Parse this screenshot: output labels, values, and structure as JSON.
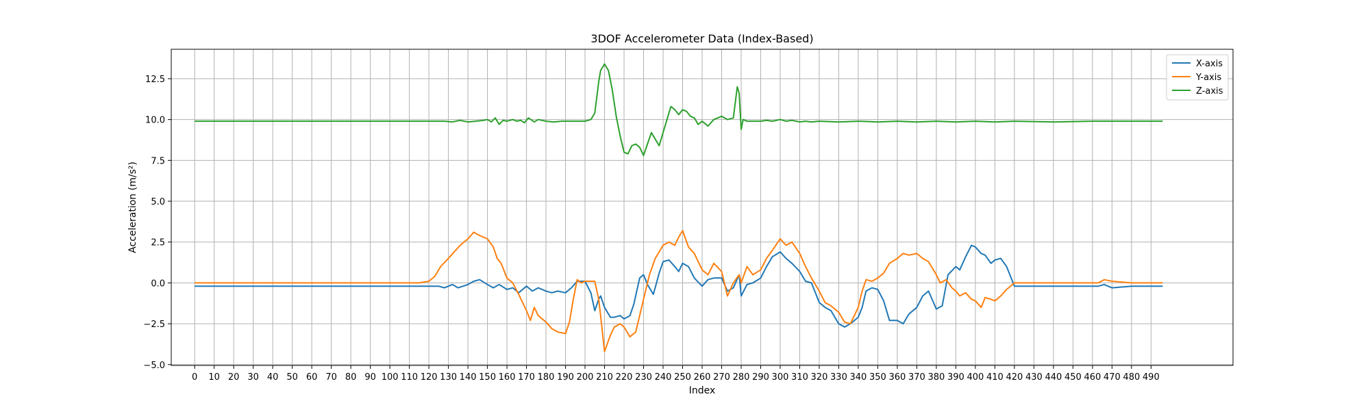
{
  "chart_data": {
    "type": "line",
    "title": "3DOF Accelerometer Data (Index-Based)",
    "xlabel": "Index",
    "ylabel": "Acceleration (m/s²)",
    "xlim": [
      -12,
      532
    ],
    "ylim": [
      -5.05,
      14.3
    ],
    "xticks": [
      0,
      10,
      20,
      30,
      40,
      50,
      60,
      70,
      80,
      90,
      100,
      110,
      120,
      130,
      140,
      150,
      160,
      170,
      180,
      190,
      200,
      210,
      220,
      230,
      240,
      250,
      260,
      270,
      280,
      290,
      300,
      310,
      320,
      330,
      340,
      350,
      360,
      370,
      380,
      390,
      400,
      410,
      420,
      430,
      440,
      450,
      460,
      470,
      480,
      490
    ],
    "yticks": [
      -5.0,
      -2.5,
      0.0,
      2.5,
      5.0,
      7.5,
      10.0,
      12.5
    ],
    "ytick_labels": [
      "−5.0",
      "−2.5",
      "0.0",
      "2.5",
      "5.0",
      "7.5",
      "10.0",
      "12.5"
    ],
    "grid": true,
    "legend_position": "top-right",
    "series": [
      {
        "name": "X-axis",
        "color": "#1f77b4",
        "x": [
          0,
          20,
          40,
          60,
          80,
          100,
          120,
          125,
          128,
          132,
          135,
          140,
          143,
          146,
          150,
          153,
          156,
          160,
          163,
          166,
          170,
          173,
          176,
          180,
          183,
          186,
          190,
          193,
          196,
          200,
          203,
          205,
          207,
          208,
          210,
          213,
          215,
          218,
          220,
          223,
          225,
          228,
          230,
          232,
          235,
          238,
          240,
          243,
          246,
          248,
          250,
          253,
          256,
          260,
          263,
          266,
          270,
          273,
          276,
          279,
          280,
          283,
          286,
          290,
          293,
          296,
          300,
          303,
          306,
          310,
          313,
          316,
          320,
          323,
          326,
          330,
          333,
          336,
          340,
          342,
          344,
          347,
          350,
          353,
          356,
          360,
          363,
          366,
          370,
          373,
          376,
          380,
          383,
          386,
          390,
          392,
          395,
          398,
          400,
          403,
          405,
          408,
          410,
          413,
          416,
          420,
          440,
          460,
          463,
          466,
          470,
          480,
          490,
          496
        ],
        "y": [
          -0.2,
          -0.2,
          -0.2,
          -0.2,
          -0.2,
          -0.2,
          -0.2,
          -0.2,
          -0.3,
          -0.1,
          -0.3,
          -0.1,
          0.1,
          0.2,
          -0.1,
          -0.3,
          -0.1,
          -0.4,
          -0.3,
          -0.6,
          -0.2,
          -0.5,
          -0.3,
          -0.5,
          -0.6,
          -0.5,
          -0.6,
          -0.3,
          0.1,
          0.1,
          -0.6,
          -1.7,
          -1.0,
          -0.8,
          -1.5,
          -2.1,
          -2.1,
          -2.0,
          -2.2,
          -2.0,
          -1.3,
          0.3,
          0.5,
          -0.1,
          -0.7,
          0.6,
          1.3,
          1.4,
          1.0,
          0.7,
          1.2,
          1.0,
          0.3,
          -0.2,
          0.2,
          0.3,
          0.3,
          -0.5,
          -0.3,
          0.5,
          -0.8,
          -0.1,
          0.0,
          0.3,
          1.0,
          1.6,
          1.9,
          1.5,
          1.2,
          0.7,
          0.1,
          0.0,
          -1.2,
          -1.5,
          -1.7,
          -2.5,
          -2.7,
          -2.5,
          -2.1,
          -1.5,
          -0.5,
          -0.3,
          -0.4,
          -1.1,
          -2.3,
          -2.3,
          -2.5,
          -1.9,
          -1.5,
          -0.8,
          -0.5,
          -1.6,
          -1.4,
          0.5,
          1.0,
          0.8,
          1.6,
          2.3,
          2.2,
          1.8,
          1.7,
          1.2,
          1.4,
          1.5,
          1.0,
          -0.2,
          -0.2,
          -0.2,
          -0.2,
          -0.1,
          -0.3,
          -0.2,
          -0.2,
          -0.2
        ]
      },
      {
        "name": "Y-axis",
        "color": "#ff7f0e",
        "x": [
          0,
          20,
          40,
          60,
          80,
          100,
          115,
          120,
          123,
          126,
          130,
          133,
          136,
          140,
          143,
          146,
          150,
          153,
          155,
          157,
          160,
          163,
          166,
          170,
          172,
          174,
          176,
          180,
          183,
          186,
          190,
          192,
          194,
          196,
          198,
          200,
          203,
          205,
          207,
          208,
          210,
          213,
          215,
          218,
          220,
          223,
          226,
          230,
          233,
          236,
          240,
          243,
          246,
          248,
          250,
          253,
          256,
          260,
          263,
          266,
          270,
          273,
          276,
          279,
          280,
          283,
          286,
          290,
          293,
          296,
          300,
          303,
          306,
          310,
          313,
          316,
          320,
          323,
          326,
          330,
          333,
          336,
          340,
          342,
          344,
          347,
          350,
          353,
          356,
          360,
          363,
          366,
          370,
          373,
          376,
          380,
          382,
          385,
          388,
          390,
          392,
          395,
          398,
          400,
          403,
          405,
          408,
          410,
          413,
          416,
          420,
          440,
          460,
          463,
          466,
          470,
          480,
          490,
          496
        ],
        "y": [
          0.0,
          0.0,
          0.0,
          0.0,
          0.0,
          0.0,
          0.0,
          0.1,
          0.4,
          1.0,
          1.5,
          1.9,
          2.3,
          2.7,
          3.1,
          2.9,
          2.7,
          2.2,
          1.5,
          1.2,
          0.3,
          0.0,
          -0.7,
          -1.7,
          -2.3,
          -1.5,
          -2.0,
          -2.4,
          -2.8,
          -3.0,
          -3.1,
          -2.4,
          -1.0,
          0.2,
          0.0,
          0.1,
          0.1,
          0.1,
          -1.0,
          -2.0,
          -4.2,
          -3.2,
          -2.7,
          -2.5,
          -2.7,
          -3.3,
          -3.0,
          -1.0,
          0.5,
          1.5,
          2.3,
          2.5,
          2.3,
          2.8,
          3.2,
          2.2,
          1.8,
          0.8,
          0.5,
          1.2,
          0.7,
          -0.8,
          0.0,
          0.5,
          0.0,
          1.0,
          0.5,
          0.8,
          1.5,
          2.0,
          2.7,
          2.3,
          2.5,
          1.8,
          1.0,
          0.3,
          -0.5,
          -1.2,
          -1.4,
          -1.8,
          -2.4,
          -2.5,
          -1.5,
          -0.5,
          0.2,
          0.1,
          0.3,
          0.6,
          1.2,
          1.5,
          1.8,
          1.7,
          1.8,
          1.5,
          1.3,
          0.5,
          0.0,
          0.2,
          -0.3,
          -0.5,
          -0.8,
          -0.6,
          -1.0,
          -1.1,
          -1.5,
          -0.9,
          -1.0,
          -1.1,
          -0.8,
          -0.4,
          0.0,
          0.0,
          0.0,
          0.0,
          0.2,
          0.1,
          0.0,
          0.0,
          0.0
        ]
      },
      {
        "name": "Z-axis",
        "color": "#2ca02c",
        "x": [
          0,
          20,
          40,
          60,
          80,
          100,
          120,
          128,
          132,
          136,
          140,
          144,
          148,
          150,
          152,
          154,
          156,
          158,
          160,
          163,
          165,
          167,
          169,
          171,
          174,
          176,
          180,
          184,
          188,
          192,
          196,
          200,
          203,
          205,
          207,
          208,
          210,
          212,
          214,
          216,
          218,
          220,
          222,
          224,
          226,
          228,
          230,
          232,
          234,
          236,
          238,
          240,
          242,
          244,
          246,
          248,
          250,
          252,
          254,
          256,
          258,
          260,
          263,
          266,
          270,
          273,
          276,
          278,
          279,
          280,
          281,
          283,
          286,
          290,
          293,
          296,
          300,
          303,
          306,
          310,
          313,
          316,
          320,
          330,
          340,
          350,
          360,
          370,
          380,
          390,
          400,
          410,
          420,
          440,
          460,
          480,
          496
        ],
        "y": [
          9.9,
          9.9,
          9.9,
          9.9,
          9.9,
          9.9,
          9.9,
          9.9,
          9.85,
          9.95,
          9.85,
          9.9,
          9.95,
          10.0,
          9.85,
          10.1,
          9.7,
          9.95,
          9.9,
          10.0,
          9.9,
          9.95,
          9.8,
          10.1,
          9.85,
          10.0,
          9.9,
          9.85,
          9.9,
          9.9,
          9.9,
          9.9,
          10.0,
          10.4,
          12.3,
          13.0,
          13.4,
          13.0,
          11.8,
          10.2,
          9.0,
          8.0,
          7.9,
          8.4,
          8.5,
          8.3,
          7.8,
          8.5,
          9.2,
          8.8,
          8.4,
          9.2,
          10.0,
          10.8,
          10.6,
          10.3,
          10.6,
          10.5,
          10.2,
          10.1,
          9.7,
          9.9,
          9.6,
          10.0,
          10.2,
          10.0,
          10.1,
          12.0,
          11.6,
          9.4,
          10.0,
          9.9,
          9.9,
          9.9,
          9.95,
          9.9,
          10.0,
          9.9,
          9.95,
          9.85,
          9.9,
          9.85,
          9.9,
          9.85,
          9.9,
          9.85,
          9.9,
          9.85,
          9.9,
          9.85,
          9.9,
          9.85,
          9.9,
          9.85,
          9.9,
          9.9,
          9.9
        ]
      }
    ]
  }
}
